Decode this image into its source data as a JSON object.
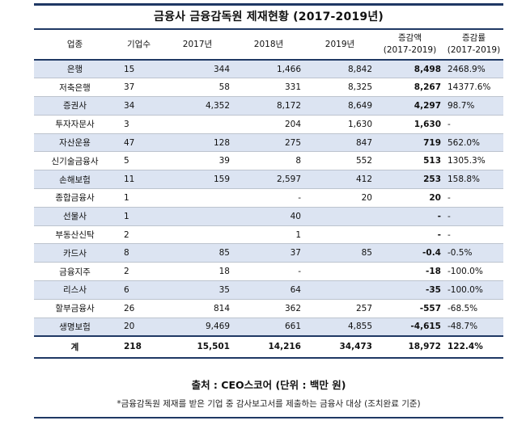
{
  "title": "금융사 금융감독원 제재현황 (2017-2019년)",
  "headers": {
    "category": "업종",
    "count": "기업수",
    "y2017": "2017년",
    "y2018": "2018년",
    "y2019": "2019년",
    "change_line1": "증감액",
    "change_line2": "(2017-2019)",
    "rate_line1": "증감률",
    "rate_line2": "(2017-2019)"
  },
  "rows": [
    {
      "category": "은행",
      "count": "15",
      "y2017": "344",
      "y2018": "1,466",
      "y2019": "8,842",
      "change": "8,498",
      "rate": "2468.9%"
    },
    {
      "category": "저축은행",
      "count": "37",
      "y2017": "58",
      "y2018": "331",
      "y2019": "8,325",
      "change": "8,267",
      "rate": "14377.6%"
    },
    {
      "category": "증권사",
      "count": "34",
      "y2017": "4,352",
      "y2018": "8,172",
      "y2019": "8,649",
      "change": "4,297",
      "rate": "98.7%"
    },
    {
      "category": "투자자문사",
      "count": "3",
      "y2017": "",
      "y2018": "204",
      "y2019": "1,630",
      "change": "1,630",
      "rate": "-"
    },
    {
      "category": "자산운용",
      "count": "47",
      "y2017": "128",
      "y2018": "275",
      "y2019": "847",
      "change": "719",
      "rate": "562.0%"
    },
    {
      "category": "신기술금융사",
      "count": "5",
      "y2017": "39",
      "y2018": "8",
      "y2019": "552",
      "change": "513",
      "rate": "1305.3%"
    },
    {
      "category": "손해보험",
      "count": "11",
      "y2017": "159",
      "y2018": "2,597",
      "y2019": "412",
      "change": "253",
      "rate": "158.8%"
    },
    {
      "category": "종합금융사",
      "count": "1",
      "y2017": "",
      "y2018": "-",
      "y2019": "20",
      "change": "20",
      "rate": "-"
    },
    {
      "category": "선물사",
      "count": "1",
      "y2017": "",
      "y2018": "40",
      "y2019": "",
      "change": "-",
      "rate": "-"
    },
    {
      "category": "부동산신탁",
      "count": "2",
      "y2017": "",
      "y2018": "1",
      "y2019": "",
      "change": "-",
      "rate": "-"
    },
    {
      "category": "카드사",
      "count": "8",
      "y2017": "85",
      "y2018": "37",
      "y2019": "85",
      "change": "-0.4",
      "rate": "-0.5%"
    },
    {
      "category": "금융지주",
      "count": "2",
      "y2017": "18",
      "y2018": "-",
      "y2019": "",
      "change": "-18",
      "rate": "-100.0%"
    },
    {
      "category": "리스사",
      "count": "6",
      "y2017": "35",
      "y2018": "64",
      "y2019": "",
      "change": "-35",
      "rate": "-100.0%"
    },
    {
      "category": "할부금융사",
      "count": "26",
      "y2017": "814",
      "y2018": "362",
      "y2019": "257",
      "change": "-557",
      "rate": "-68.5%"
    },
    {
      "category": "생명보험",
      "count": "20",
      "y2017": "9,469",
      "y2018": "661",
      "y2019": "4,855",
      "change": "-4,615",
      "rate": "-48.7%"
    }
  ],
  "total": {
    "category": "계",
    "count": "218",
    "y2017": "15,501",
    "y2018": "14,216",
    "y2019": "34,473",
    "change": "18,972",
    "rate": "122.4%"
  },
  "source": "출처 : CEO스코어 (단위 : 백만 원)",
  "note": "*금융감독원 제재를 받은 기업 중 감사보고서를 제출하는 금융사 대상 (조치완료 기준)",
  "colors": {
    "header_rule": "#1f3864",
    "highlight_row": "#dce4f2"
  }
}
